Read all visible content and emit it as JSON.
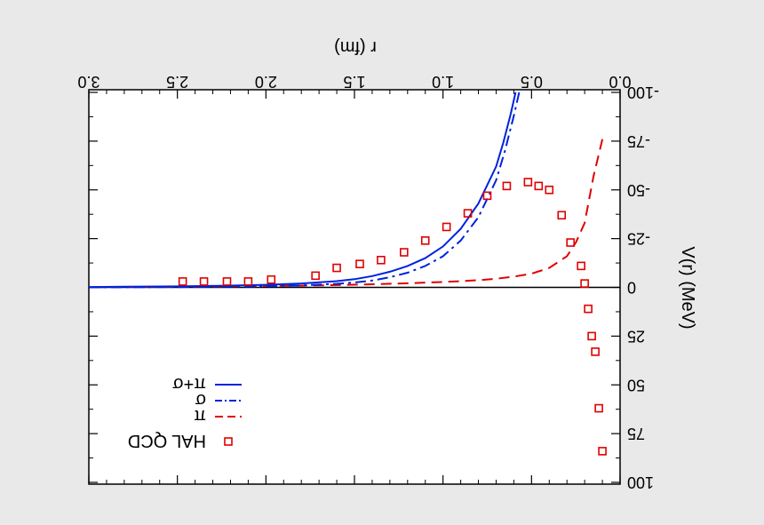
{
  "chart_data": {
    "type": "line",
    "orientation": "rotated-180",
    "xlabel": "r (fm)",
    "ylabel": "V(r) (MeV)",
    "xlim": [
      0.0,
      3.0
    ],
    "ylim": [
      -100,
      100
    ],
    "x_ticks": [
      "0.0",
      "0.5",
      "1.0",
      "1.5",
      "2.0",
      "2.5",
      "3.0"
    ],
    "y_ticks": [
      "-100",
      "-75",
      "-50",
      "-25",
      "0",
      "25",
      "50",
      "75",
      "100"
    ],
    "zero_line": true,
    "legend_position": "upper-left of rotated figure",
    "series": [
      {
        "name": "HAL QCD",
        "style": "markers-open-square",
        "color": "#e00000",
        "x": [
          0.1,
          0.12,
          0.14,
          0.16,
          0.18,
          0.2,
          0.22,
          0.28,
          0.33,
          0.4,
          0.46,
          0.52,
          0.64,
          0.75,
          0.86,
          0.98,
          1.1,
          1.22,
          1.35,
          1.47,
          1.6,
          1.72,
          1.97,
          2.1,
          2.22,
          2.35,
          2.47
        ],
        "y": [
          84,
          62,
          33,
          25,
          11,
          -2,
          -11,
          -23,
          -37,
          -50,
          -52,
          -54,
          -52,
          -47,
          -38,
          -31,
          -24,
          -18,
          -14,
          -12,
          -10,
          -6,
          -4,
          -3,
          -3,
          -3,
          -3
        ]
      },
      {
        "name": "π",
        "style": "dashed",
        "color": "#e00000",
        "x": [
          0.1,
          0.15,
          0.2,
          0.25,
          0.3,
          0.4,
          0.5,
          0.6,
          0.7,
          0.8,
          0.9,
          1.0,
          1.2,
          1.4,
          1.6,
          1.8,
          2.0,
          2.2,
          2.5,
          2.8,
          3.0
        ],
        "y": [
          -76,
          -57,
          -33,
          -23,
          -16,
          -10,
          -7,
          -5.5,
          -4.4,
          -3.7,
          -3.2,
          -2.8,
          -2.1,
          -1.6,
          -1.2,
          -0.9,
          -0.7,
          -0.5,
          -0.3,
          -0.2,
          -0.1
        ]
      },
      {
        "name": "σ",
        "style": "dash-dot",
        "color": "#0022dd",
        "x": [
          0.57,
          0.6,
          0.65,
          0.7,
          0.8,
          0.9,
          1.0,
          1.1,
          1.2,
          1.3,
          1.4,
          1.5,
          1.6,
          1.8,
          2.0,
          2.2,
          2.5,
          2.8,
          3.0
        ],
        "y": [
          -100,
          -88,
          -70,
          -55,
          -36,
          -24,
          -16,
          -11,
          -7.5,
          -5.2,
          -3.5,
          -2.5,
          -1.8,
          -1.0,
          -0.6,
          -0.4,
          -0.2,
          -0.1,
          -0.05
        ]
      },
      {
        "name": "π+σ",
        "style": "solid",
        "color": "#0022dd",
        "x": [
          0.59,
          0.62,
          0.66,
          0.7,
          0.8,
          0.9,
          1.0,
          1.1,
          1.2,
          1.3,
          1.4,
          1.5,
          1.6,
          1.8,
          2.0,
          2.2,
          2.5,
          2.8,
          3.0
        ],
        "y": [
          -100,
          -88,
          -74,
          -62,
          -43,
          -30,
          -21,
          -15,
          -11,
          -8,
          -5.8,
          -4.2,
          -3.2,
          -2.0,
          -1.3,
          -0.9,
          -0.5,
          -0.3,
          -0.2
        ]
      }
    ]
  }
}
